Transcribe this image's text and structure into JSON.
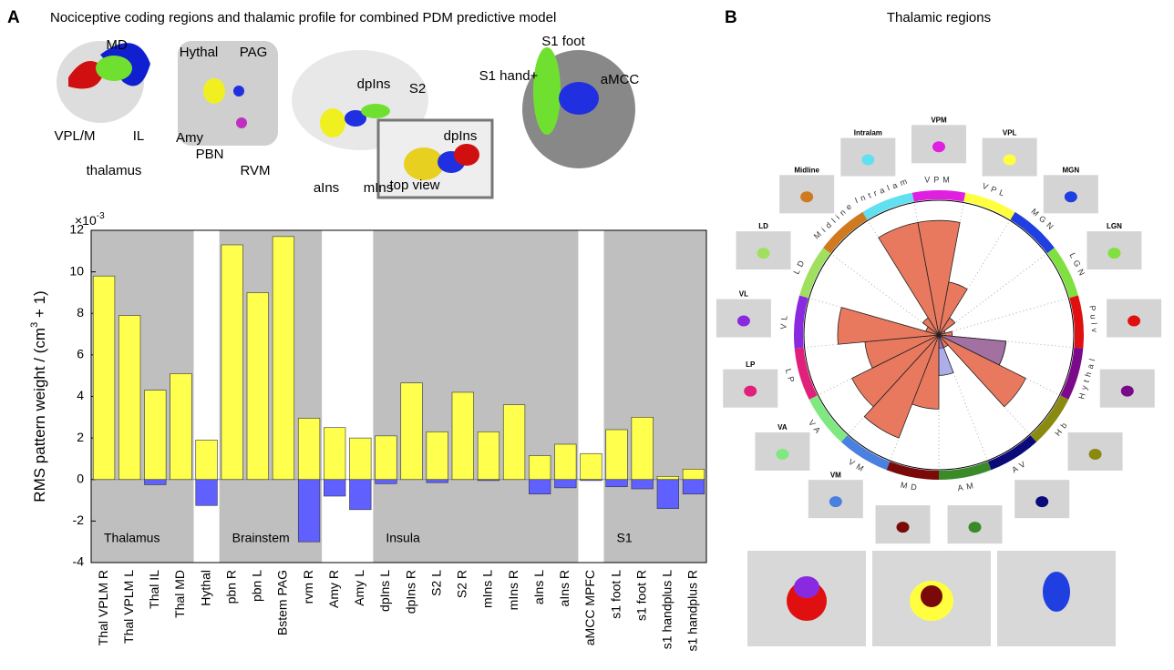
{
  "panel_a": {
    "letter": "A",
    "title": "Nociceptive coding regions and thalamic profile for combined PDM predictive model",
    "brain_labels": [
      "MD",
      "VPL/M",
      "IL",
      "thalamus",
      "Hythal",
      "PAG",
      "Amy",
      "PBN",
      "RVM",
      "dpIns",
      "S2",
      "aIns",
      "mIns",
      "top view",
      "dpIns",
      "S1 foot",
      "S1 hand+",
      "aMCC"
    ]
  },
  "panel_b": {
    "letter": "B",
    "title": "Thalamic regions"
  },
  "chart_data": [
    {
      "type": "bar",
      "ylabel_parts": [
        "RMS pattern weight / (cm",
        "3",
        " + 1)"
      ],
      "axis_multiplier": [
        "×10",
        "-3"
      ],
      "categories": [
        "Thal VPLM R",
        "Thal VPLM L",
        "Thal IL",
        "Thal MD",
        "Hythal",
        "pbn R",
        "pbn L",
        "Bstem PAG",
        "rvm R",
        "Amy R",
        "Amy L",
        "dpIns L",
        "dpIns R",
        "S2 L",
        "S2 R",
        "mIns L",
        "mIns R",
        "aIns L",
        "aIns R",
        "aMCC MPFC",
        "s1 foot L",
        "s1 foot R",
        "s1 handplus L",
        "s1 handplus R"
      ],
      "series": [
        {
          "color": "#ffff4d",
          "values": [
            9.8,
            7.9,
            4.3,
            5.1,
            1.9,
            11.3,
            9.0,
            11.7,
            2.95,
            2.5,
            2.0,
            2.1,
            4.65,
            2.3,
            4.2,
            2.3,
            3.6,
            1.15,
            1.7,
            1.25,
            2.4,
            3.0,
            0.15,
            0.5
          ]
        },
        {
          "color": "#6060ff",
          "values": [
            0,
            0,
            -0.25,
            0,
            -1.25,
            0,
            0,
            0,
            -3.0,
            -0.8,
            -1.45,
            -0.2,
            0,
            -0.15,
            0,
            -0.05,
            0,
            -0.7,
            -0.4,
            -0.05,
            -0.35,
            -0.45,
            -1.4,
            -0.7
          ]
        }
      ],
      "groups": [
        {
          "label": "Thalamus",
          "from": "Thal VPLM R",
          "to": "Thal MD"
        },
        {
          "label": "Brainstem",
          "from": "pbn R",
          "to": "rvm R"
        },
        {
          "label": "Insula",
          "from": "dpIns L",
          "to": "aIns R"
        },
        {
          "label": "S1",
          "from": "s1 foot L",
          "to": "s1 handplus R"
        }
      ],
      "ylim": [
        -4,
        12
      ],
      "yticks": [
        -4,
        -2,
        0,
        2,
        4,
        6,
        8,
        10,
        12
      ]
    },
    {
      "type": "polar",
      "categories": [
        "VPM",
        "VPL",
        "MGN",
        "LGN",
        "Pulv",
        "Hythal",
        "Hb",
        "AV",
        "AM",
        "MD",
        "VM",
        "VA",
        "LP",
        "VL",
        "LD",
        "Midline",
        "Intralam"
      ],
      "ring_colors": [
        "#e020e0",
        "#ffff40",
        "#1f3fe0",
        "#80e040",
        "#e01010",
        "#7a0a8a",
        "#8a8a10",
        "#0a0a7a",
        "#3a8a2a",
        "#7a0a0a",
        "#4a80e0",
        "#80e880",
        "#e0207a",
        "#8a2ae0",
        "#a0e060",
        "#d07a20",
        "#60e0f0"
      ],
      "thumbnail_labels": [
        "VPM",
        "VPL",
        "MGN",
        "LGN",
        null,
        null,
        null,
        null,
        null,
        null,
        "VM",
        "VA",
        "LP",
        "VL",
        "LD",
        "Midline",
        "Intralam"
      ],
      "series": [
        {
          "color": "#e8795f",
          "values": [
            0.85,
            0.4,
            0.15,
            0.05,
            0.1,
            0.5,
            0.72,
            0.1,
            0.1,
            0.55,
            0.82,
            0.72,
            0.55,
            0.75,
            0.1,
            0.15,
            0.85
          ]
        },
        {
          "color": "#6a6ad8",
          "values": [
            0,
            0,
            0,
            0,
            0,
            0.5,
            0,
            0,
            0.3,
            0,
            0,
            0,
            0,
            0,
            0,
            0,
            0
          ]
        }
      ],
      "rlim": [
        0,
        1
      ]
    }
  ]
}
